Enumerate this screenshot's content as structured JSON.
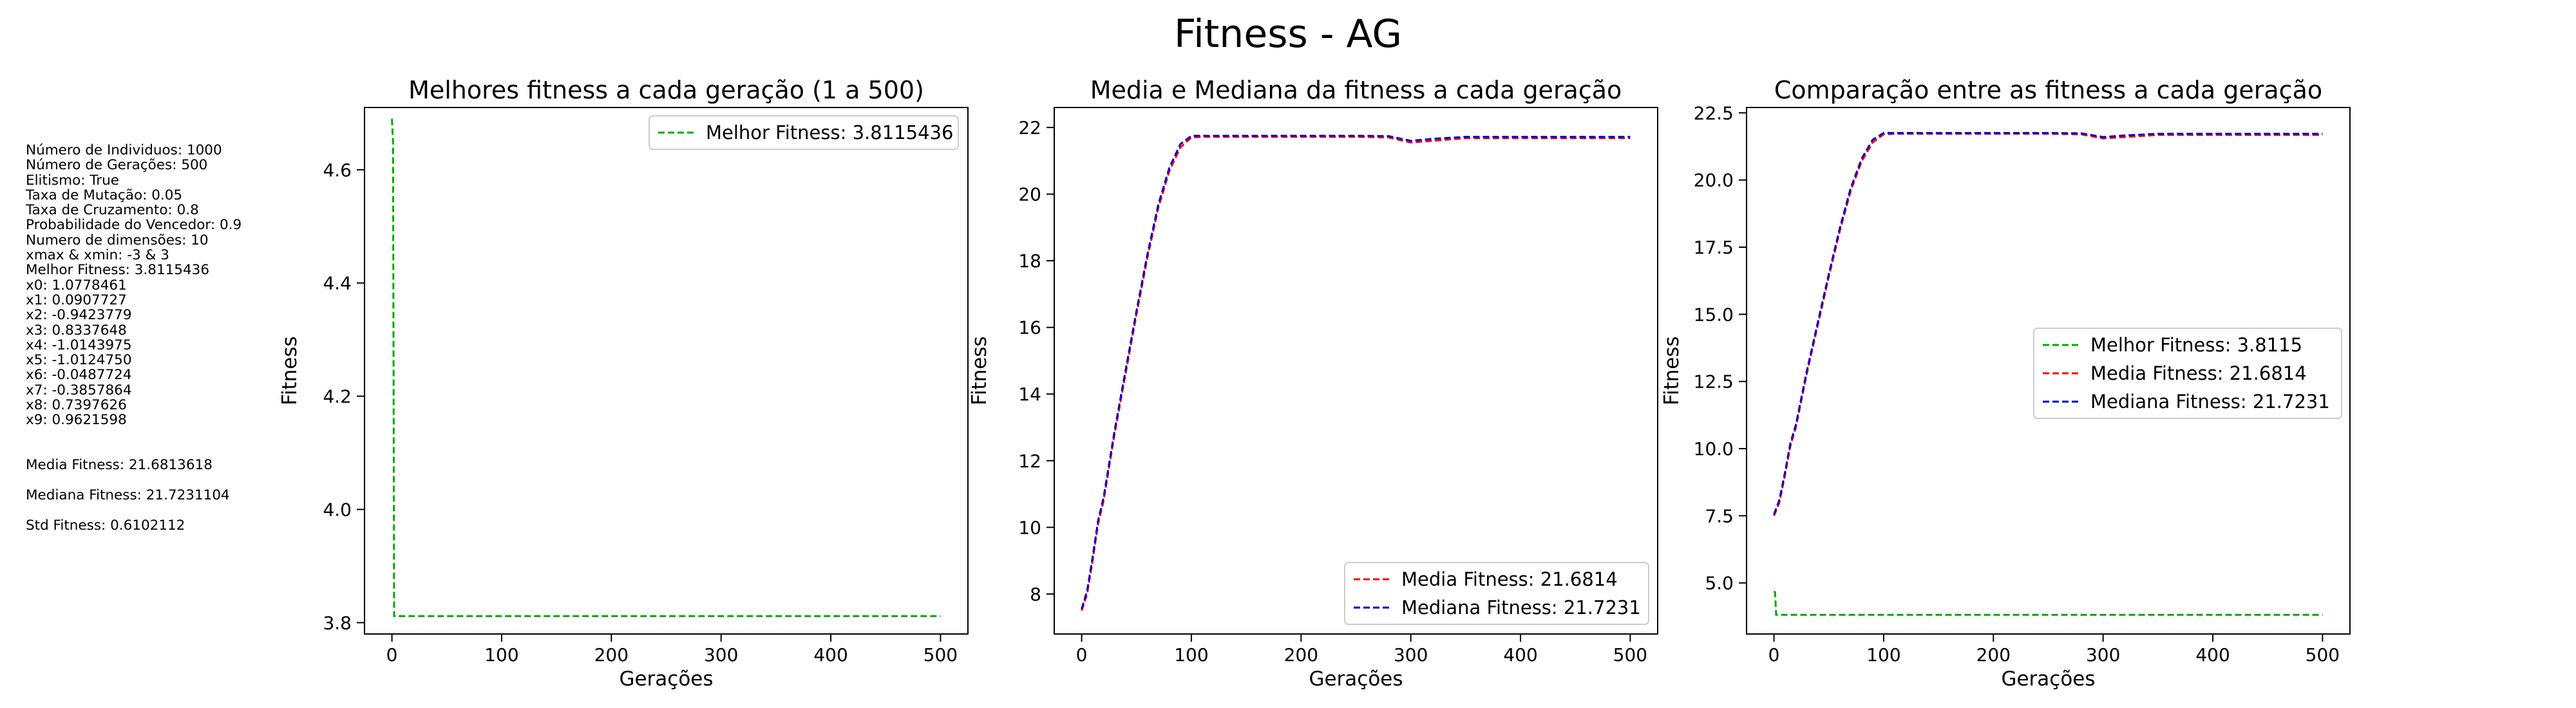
{
  "figure": {
    "suptitle": "Fitness - AG",
    "params": [
      "Número de Individuos: 1000",
      "Número de Gerações: 500",
      "Elitismo: True",
      "Taxa de Mutação: 0.05",
      "Taxa de Cruzamento: 0.8",
      "Probabilidade do Vencedor: 0.9",
      "Numero de dimensões: 10",
      "xmax & xmin: -3 & 3",
      "Melhor Fitness: 3.8115436",
      "x0: 1.0778461",
      "x1: 0.0907727",
      "x2: -0.9423779",
      "x3: 0.8337648",
      "x4: -1.0143975",
      "x5: -1.0124750",
      "x6: -0.0487724",
      "x7: -0.3857864",
      "x8: 0.7397626",
      "x9: 0.9621598"
    ],
    "stats": [
      "Media Fitness: 21.6813618",
      "Mediana Fitness: 21.7231104",
      "Std Fitness: 0.6102112"
    ]
  },
  "colors": {
    "best": "#00aa00",
    "mean": "#ff0000",
    "median": "#0000cc",
    "axis": "#000000"
  },
  "chart_data": [
    {
      "type": "line",
      "title": "Melhores fitness a cada geração (1 a 500)",
      "xlabel": "Gerações",
      "ylabel": "Fitness",
      "xlim": [
        -25,
        525
      ],
      "ylim": [
        3.78,
        4.71
      ],
      "xticks": [
        0,
        100,
        200,
        300,
        400,
        500
      ],
      "xtick_labels": [
        "0",
        "100",
        "200",
        "300",
        "400",
        "500"
      ],
      "yticks": [
        3.8,
        4.0,
        4.2,
        4.4,
        4.6
      ],
      "ytick_labels": [
        "3.8",
        "4.0",
        "4.2",
        "4.4",
        "4.6"
      ],
      "legend_position": "upper right",
      "grid": false,
      "series": [
        {
          "name": "Melhor Fitness: 3.8115436",
          "color_key": "best",
          "x": [
            0,
            1,
            2,
            500
          ],
          "y": [
            4.69,
            4.65,
            3.8115,
            3.8115
          ]
        }
      ]
    },
    {
      "type": "line",
      "title": "Media e Mediana da fitness a cada geração",
      "xlabel": "Gerações",
      "ylabel": "Fitness",
      "xlim": [
        -25,
        525
      ],
      "ylim": [
        6.8,
        22.6
      ],
      "xticks": [
        0,
        100,
        200,
        300,
        400,
        500
      ],
      "xtick_labels": [
        "0",
        "100",
        "200",
        "300",
        "400",
        "500"
      ],
      "yticks": [
        8,
        10,
        12,
        14,
        16,
        18,
        20,
        22
      ],
      "ytick_labels": [
        "8",
        "10",
        "12",
        "14",
        "16",
        "18",
        "20",
        "22"
      ],
      "legend_position": "lower right",
      "grid": false,
      "series": [
        {
          "name": "Media Fitness: 21.6814",
          "color_key": "mean",
          "x": [
            0,
            5,
            10,
            15,
            20,
            30,
            40,
            50,
            60,
            70,
            80,
            90,
            100,
            110,
            150,
            200,
            250,
            280,
            300,
            320,
            350,
            400,
            450,
            500
          ],
          "y": [
            7.5,
            8.0,
            9.0,
            10.1,
            10.8,
            12.8,
            14.6,
            16.4,
            18.1,
            19.6,
            20.7,
            21.4,
            21.7,
            21.72,
            21.72,
            21.72,
            21.72,
            21.7,
            21.55,
            21.6,
            21.68,
            21.68,
            21.68,
            21.68
          ]
        },
        {
          "name": "Mediana Fitness: 21.7231",
          "color_key": "median",
          "x": [
            0,
            5,
            10,
            15,
            20,
            30,
            40,
            50,
            60,
            70,
            80,
            90,
            100,
            110,
            150,
            200,
            250,
            280,
            300,
            320,
            350,
            400,
            450,
            500
          ],
          "y": [
            7.55,
            8.1,
            9.1,
            10.2,
            10.9,
            12.9,
            14.7,
            16.5,
            18.2,
            19.7,
            20.8,
            21.5,
            21.75,
            21.75,
            21.75,
            21.75,
            21.75,
            21.74,
            21.6,
            21.66,
            21.72,
            21.72,
            21.72,
            21.72
          ]
        }
      ]
    },
    {
      "type": "line",
      "title": "Comparação entre as fitness a cada geração",
      "xlabel": "Gerações",
      "ylabel": "Fitness",
      "xlim": [
        -25,
        525
      ],
      "ylim": [
        3.1,
        22.7
      ],
      "xticks": [
        0,
        100,
        200,
        300,
        400,
        500
      ],
      "xtick_labels": [
        "0",
        "100",
        "200",
        "300",
        "400",
        "500"
      ],
      "yticks": [
        5.0,
        7.5,
        10.0,
        12.5,
        15.0,
        17.5,
        20.0,
        22.5
      ],
      "ytick_labels": [
        "5.0",
        "7.5",
        "10.0",
        "12.5",
        "15.0",
        "17.5",
        "20.0",
        "22.5"
      ],
      "legend_position": "center right",
      "grid": false,
      "series": [
        {
          "name": "Melhor Fitness: 3.8115",
          "color_key": "best",
          "x": [
            0,
            1,
            2,
            500
          ],
          "y": [
            4.69,
            4.65,
            3.8115,
            3.8115
          ]
        },
        {
          "name": "Media Fitness: 21.6814",
          "color_key": "mean",
          "x": [
            0,
            5,
            10,
            15,
            20,
            30,
            40,
            50,
            60,
            70,
            80,
            90,
            100,
            110,
            150,
            200,
            250,
            280,
            300,
            320,
            350,
            400,
            450,
            500
          ],
          "y": [
            7.5,
            8.0,
            9.0,
            10.1,
            10.8,
            12.8,
            14.6,
            16.4,
            18.1,
            19.6,
            20.7,
            21.4,
            21.7,
            21.72,
            21.72,
            21.72,
            21.72,
            21.7,
            21.55,
            21.6,
            21.68,
            21.68,
            21.68,
            21.68
          ]
        },
        {
          "name": "Mediana Fitness: 21.7231",
          "color_key": "median",
          "x": [
            0,
            5,
            10,
            15,
            20,
            30,
            40,
            50,
            60,
            70,
            80,
            90,
            100,
            110,
            150,
            200,
            250,
            280,
            300,
            320,
            350,
            400,
            450,
            500
          ],
          "y": [
            7.55,
            8.1,
            9.1,
            10.2,
            10.9,
            12.9,
            14.7,
            16.5,
            18.2,
            19.7,
            20.8,
            21.5,
            21.75,
            21.75,
            21.75,
            21.75,
            21.75,
            21.74,
            21.6,
            21.66,
            21.72,
            21.72,
            21.72,
            21.72
          ]
        }
      ]
    }
  ]
}
